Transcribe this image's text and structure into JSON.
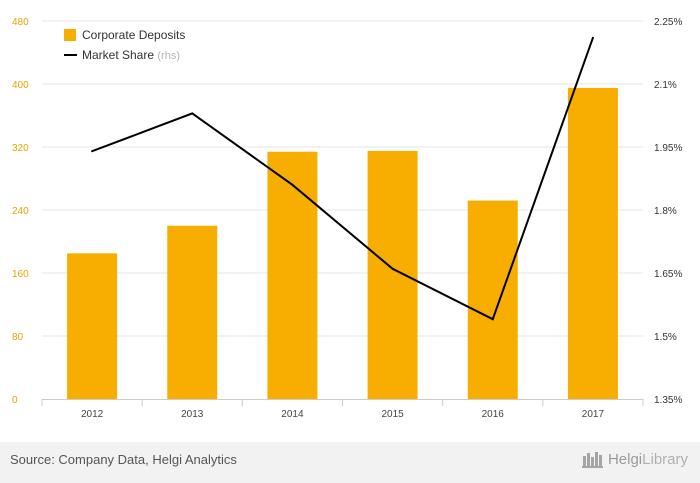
{
  "chart_data": {
    "type": "bar+line",
    "categories": [
      "2012",
      "2013",
      "2014",
      "2015",
      "2016",
      "2017"
    ],
    "series": [
      {
        "name": "Corporate Deposits",
        "type": "bar",
        "axis": "left",
        "color": "#f7ae00",
        "values": [
          185,
          220,
          314,
          315,
          252,
          395
        ]
      },
      {
        "name": "Market Share",
        "name_suffix": "(rhs)",
        "type": "line",
        "axis": "right",
        "color": "#000000",
        "values": [
          1.94,
          2.03,
          1.86,
          1.66,
          1.54,
          2.21
        ]
      }
    ],
    "y_left": {
      "lim": [
        0,
        480
      ],
      "ticks": [
        0,
        80,
        160,
        240,
        320,
        400,
        480
      ],
      "tick_labels": [
        "0",
        "80",
        "160",
        "240",
        "320",
        "400",
        "480"
      ],
      "color": "#e8a300"
    },
    "y_right": {
      "lim": [
        1.35,
        2.25
      ],
      "ticks": [
        1.35,
        1.5,
        1.65,
        1.8,
        1.95,
        2.1,
        2.25
      ],
      "tick_labels": [
        "1.35%",
        "1.5%",
        "1.65%",
        "1.8%",
        "1.95%",
        "2.1%",
        "2.25%"
      ]
    },
    "grid": "horizontal",
    "legend_position": "top-left",
    "title": "",
    "xlabel": "",
    "ylabel": ""
  },
  "footer": {
    "source": "Source: Company Data, Helgi Analytics",
    "brand": "Helgi",
    "brand_light": "Library"
  }
}
